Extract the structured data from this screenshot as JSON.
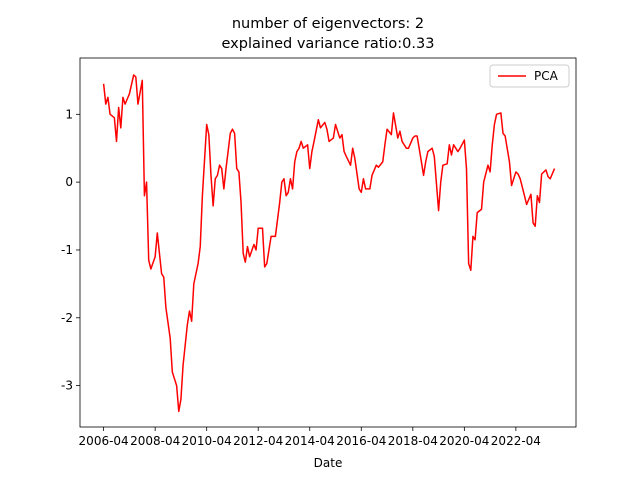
{
  "chart_data": {
    "type": "line",
    "title": [
      "number of eigenvectors: 2",
      "explained variance ratio:0.33"
    ],
    "xlabel": "Date",
    "legend": "upper right",
    "x": [
      "2006-04",
      "2006-05",
      "2006-06",
      "2006-07",
      "2006-09",
      "2006-10",
      "2006-11",
      "2006-12",
      "2007-01",
      "2007-02",
      "2007-04",
      "2007-06",
      "2007-07",
      "2007-08",
      "2007-10",
      "2007-11",
      "2007-12",
      "2008-01",
      "2008-02",
      "2008-04",
      "2008-05",
      "2008-07",
      "2008-08",
      "2008-09",
      "2008-11",
      "2008-12",
      "2009-02",
      "2009-03",
      "2009-04",
      "2009-05",
      "2009-07",
      "2009-08",
      "2009-09",
      "2009-10",
      "2009-12",
      "2010-01",
      "2010-02",
      "2010-04",
      "2010-05",
      "2010-06",
      "2010-07",
      "2010-08",
      "2010-09",
      "2010-10",
      "2010-11",
      "2010-12",
      "2011-01",
      "2011-03",
      "2011-04",
      "2011-05",
      "2011-06",
      "2011-07",
      "2011-08",
      "2011-09",
      "2011-10",
      "2011-11",
      "2011-12",
      "2012-02",
      "2012-03",
      "2012-04",
      "2012-06",
      "2012-07",
      "2012-08",
      "2012-09",
      "2012-10",
      "2012-12",
      "2013-02",
      "2013-03",
      "2013-04",
      "2013-05",
      "2013-06",
      "2013-07",
      "2013-08",
      "2013-09",
      "2013-10",
      "2013-11",
      "2013-12",
      "2014-01",
      "2014-03",
      "2014-04",
      "2014-05",
      "2014-06",
      "2014-08",
      "2014-09",
      "2014-11",
      "2014-12",
      "2015-01",
      "2015-03",
      "2015-04",
      "2015-06",
      "2015-07",
      "2015-08",
      "2015-09",
      "2015-11",
      "2015-12",
      "2016-01",
      "2016-03",
      "2016-04",
      "2016-05",
      "2016-06",
      "2016-08",
      "2016-09",
      "2016-11",
      "2016-12",
      "2017-02",
      "2017-03",
      "2017-04",
      "2017-06",
      "2017-07",
      "2017-09",
      "2017-10",
      "2017-11",
      "2018-01",
      "2018-02",
      "2018-04",
      "2018-05",
      "2018-06",
      "2018-08",
      "2018-09",
      "2018-10",
      "2018-11",
      "2019-01",
      "2019-02",
      "2019-04",
      "2019-05",
      "2019-06",
      "2019-08",
      "2019-09",
      "2019-10",
      "2019-11",
      "2020-01",
      "2020-02",
      "2020-04",
      "2020-05",
      "2020-06",
      "2020-07",
      "2020-08",
      "2020-09",
      "2020-10",
      "2020-12",
      "2021-01",
      "2021-03",
      "2021-04",
      "2021-05",
      "2021-06",
      "2021-07",
      "2021-09",
      "2021-10",
      "2021-11",
      "2022-01",
      "2022-02",
      "2022-04",
      "2022-05",
      "2022-06",
      "2022-08",
      "2022-09",
      "2022-11",
      "2022-12",
      "2023-01",
      "2023-02",
      "2023-03",
      "2023-04",
      "2023-06",
      "2023-07",
      "2023-08",
      "2023-10"
    ],
    "series": [
      {
        "name": "PCA",
        "color": "#ff0000",
        "values": [
          1.45,
          1.15,
          1.25,
          1.0,
          0.95,
          0.6,
          1.1,
          0.8,
          1.25,
          1.15,
          1.3,
          1.58,
          1.55,
          1.15,
          1.5,
          -0.2,
          0.0,
          -1.15,
          -1.28,
          -1.1,
          -0.75,
          -1.35,
          -1.4,
          -1.85,
          -2.3,
          -2.8,
          -3.0,
          -3.38,
          -3.2,
          -2.7,
          -2.1,
          -1.9,
          -2.05,
          -1.5,
          -1.2,
          -0.95,
          -0.2,
          0.85,
          0.7,
          0.1,
          -0.35,
          0.05,
          0.1,
          0.25,
          0.2,
          -0.1,
          0.2,
          0.72,
          0.78,
          0.72,
          0.2,
          0.15,
          -0.3,
          -1.05,
          -1.18,
          -0.95,
          -1.1,
          -0.92,
          -1.0,
          -0.68,
          -0.68,
          -1.25,
          -1.2,
          -1.0,
          -0.8,
          -0.8,
          -0.3,
          0.0,
          0.05,
          -0.2,
          -0.15,
          0.05,
          -0.1,
          0.3,
          0.45,
          0.5,
          0.6,
          0.5,
          0.55,
          0.2,
          0.45,
          0.6,
          0.92,
          0.8,
          0.88,
          0.78,
          0.6,
          0.65,
          0.85,
          0.65,
          0.7,
          0.45,
          0.38,
          0.25,
          0.5,
          0.35,
          -0.1,
          -0.15,
          0.05,
          -0.1,
          -0.1,
          0.1,
          0.25,
          0.22,
          0.3,
          0.55,
          0.78,
          0.7,
          1.02,
          0.65,
          0.75,
          0.6,
          0.5,
          0.5,
          0.65,
          0.68,
          0.68,
          0.3,
          0.1,
          0.3,
          0.45,
          0.5,
          0.38,
          -0.42,
          0.0,
          0.25,
          0.27,
          0.55,
          0.4,
          0.55,
          0.45,
          0.5,
          0.62,
          0.2,
          -1.2,
          -1.3,
          -0.8,
          -0.85,
          -0.45,
          -0.4,
          0.0,
          0.25,
          0.15,
          0.55,
          0.85,
          1.0,
          1.02,
          0.72,
          0.68,
          0.3,
          -0.05,
          0.15,
          0.12,
          0.05,
          -0.2,
          -0.33,
          -0.18,
          -0.6,
          -0.65,
          -0.2,
          -0.3,
          0.12,
          0.18,
          0.08,
          0.05,
          0.2
        ]
      }
    ],
    "xlim": [
      "2005-05",
      "2024-08"
    ],
    "xticks": [
      "2006-04",
      "2008-04",
      "2010-04",
      "2012-04",
      "2014-04",
      "2016-04",
      "2018-04",
      "2020-04",
      "2022-04"
    ],
    "ylim": [
      -3.61,
      1.83
    ],
    "yticks": [
      -3,
      -2,
      -1,
      0,
      1
    ]
  }
}
